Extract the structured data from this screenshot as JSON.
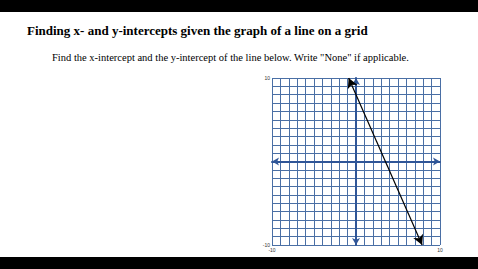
{
  "chart_data": {
    "type": "line",
    "title": "Finding x- and y-intercepts given the graph of a line on a grid",
    "subtitle": "Find the x-intercept and the y-intercept of the line below. Write \"None\" if applicable.",
    "x": [
      -0.875,
      7.875
    ],
    "values": [
      10,
      -10
    ],
    "color": "#000000",
    "marker": "arrow",
    "xlim": [
      -10,
      10
    ],
    "ylim": [
      -10,
      10
    ],
    "xticks": [
      -10,
      10
    ],
    "yticks": [
      -10,
      10
    ],
    "grid": true
  }
}
